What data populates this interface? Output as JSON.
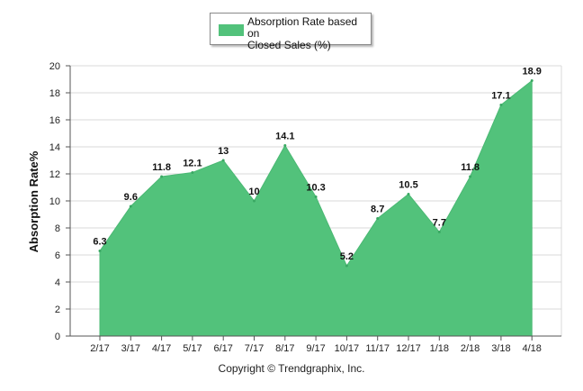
{
  "chart_data": {
    "type": "area",
    "categories": [
      "2/17",
      "3/17",
      "4/17",
      "5/17",
      "6/17",
      "7/17",
      "8/17",
      "9/17",
      "10/17",
      "11/17",
      "12/17",
      "1/18",
      "2/18",
      "3/18",
      "4/18"
    ],
    "series": [
      {
        "name": "Absorption Rate based on Closed Sales (%)",
        "values": [
          6.3,
          9.6,
          11.8,
          12.1,
          13,
          10,
          14.1,
          10.3,
          5.2,
          8.7,
          10.5,
          7.7,
          11.8,
          17.1,
          18.9
        ],
        "labels": [
          "6.3",
          "9.6",
          "11.8",
          "12.1",
          "13",
          "10",
          "14.1",
          "10.3",
          "5.2",
          "8.7",
          "10.5",
          "7.7",
          "11.8",
          "17.1",
          "18.9"
        ],
        "color": "#52c27b"
      }
    ],
    "ylabel": "Absorption Rate%",
    "xlabel": "",
    "ylim": [
      0,
      20
    ],
    "yticks": [
      "0",
      "2",
      "4",
      "6",
      "8",
      "10",
      "12",
      "14",
      "16",
      "18",
      "20"
    ],
    "grid": true,
    "legend_position": "top-center"
  },
  "legend": {
    "label_line1": "Absorption Rate based on",
    "label_line2": "Closed Sales (%)"
  },
  "footer": {
    "copyright": "Copyright © Trendgraphix, Inc."
  }
}
